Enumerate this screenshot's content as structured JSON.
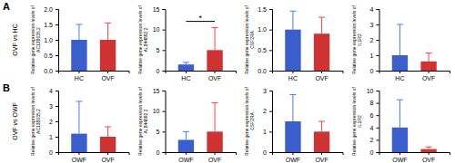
{
  "chart_data": [
    {
      "type": "bar",
      "title": "A",
      "subtitle": "OVF vs HC",
      "ylabel": "Relative gene expression levels of\nAC138035.2",
      "categories": [
        "HC",
        "OVF"
      ],
      "values": [
        1.0,
        1.0
      ],
      "errors": [
        0.5,
        0.55
      ],
      "colors": [
        "#3a5fcd",
        "#cd3333"
      ],
      "ylim": [
        0,
        2.0
      ],
      "yticks": [
        {
          "value": 0,
          "label": "0.0"
        },
        0.5,
        {
          "value": 1,
          "label": "1.0"
        },
        1.5,
        {
          "value": 2,
          "label": "2.0"
        }
      ]
    },
    {
      "type": "bar",
      "ylabel": "Relative gene expression levels of\nAL844892.2",
      "categories": [
        "HC",
        "OVF"
      ],
      "values": [
        1.5,
        5.0
      ],
      "errors": [
        0.5,
        5.5
      ],
      "colors": [
        "#3a5fcd",
        "#cd3333"
      ],
      "ylim": [
        0,
        15
      ],
      "yticks": [
        0,
        5,
        10,
        15
      ],
      "annotations": [
        {
          "text": "*",
          "y": 12
        }
      ]
    },
    {
      "type": "bar",
      "ylabel": "Relative gene expression levels of\nCSF2RA",
      "categories": [
        "HC",
        "OVF"
      ],
      "values": [
        1.0,
        0.9
      ],
      "errors": [
        0.45,
        0.4
      ],
      "colors": [
        "#3a5fcd",
        "#cd3333"
      ],
      "ylim": [
        0,
        1.5
      ],
      "yticks": [
        {
          "value": 0,
          "label": "0.0"
        },
        0.5,
        {
          "value": 1,
          "label": "1.0"
        },
        1.5
      ]
    },
    {
      "type": "bar",
      "ylabel": "Relative gene expression levels of\nIL1R2",
      "categories": [
        "HC",
        "OVF"
      ],
      "values": [
        1.0,
        0.6
      ],
      "errors": [
        2.0,
        0.55
      ],
      "colors": [
        "#3a5fcd",
        "#cd3333"
      ],
      "ylim": [
        0,
        4
      ],
      "yticks": [
        0,
        1,
        2,
        3,
        4
      ]
    },
    {
      "type": "bar",
      "title": "B",
      "subtitle": "OVF vs OWF",
      "ylabel": "Relative gene expression levels of\nAC138035.2",
      "categories": [
        "OWF",
        "OVF"
      ],
      "values": [
        1.2,
        1.0
      ],
      "errors": [
        2.1,
        0.65
      ],
      "colors": [
        "#3a5fcd",
        "#cd3333"
      ],
      "ylim": [
        0,
        4
      ],
      "yticks": [
        0,
        1,
        2,
        3,
        4
      ]
    },
    {
      "type": "bar",
      "ylabel": "Relative gene expression levels of\nAL844892.2",
      "categories": [
        "OWF",
        "OVF"
      ],
      "values": [
        3.0,
        5.0
      ],
      "errors": [
        2.0,
        7.0
      ],
      "colors": [
        "#3a5fcd",
        "#cd3333"
      ],
      "ylim": [
        0,
        15
      ],
      "yticks": [
        0,
        5,
        10,
        15
      ]
    },
    {
      "type": "bar",
      "ylabel": "Relative gene expression levels of\nCSF2RA",
      "categories": [
        "OWF",
        "OVF"
      ],
      "values": [
        1.5,
        1.0
      ],
      "errors": [
        1.3,
        0.5
      ],
      "colors": [
        "#3a5fcd",
        "#cd3333"
      ],
      "ylim": [
        0,
        3
      ],
      "yticks": [
        0,
        1,
        2,
        3
      ]
    },
    {
      "type": "bar",
      "ylabel": "Relative gene expression levels of\nIL1R2",
      "categories": [
        "OWF",
        "OVF"
      ],
      "values": [
        4.0,
        0.5
      ],
      "errors": [
        4.5,
        0.35
      ],
      "colors": [
        "#3a5fcd",
        "#cd3333"
      ],
      "ylim": [
        0,
        10
      ],
      "yticks": [
        0,
        2,
        4,
        6,
        8,
        10
      ]
    }
  ]
}
